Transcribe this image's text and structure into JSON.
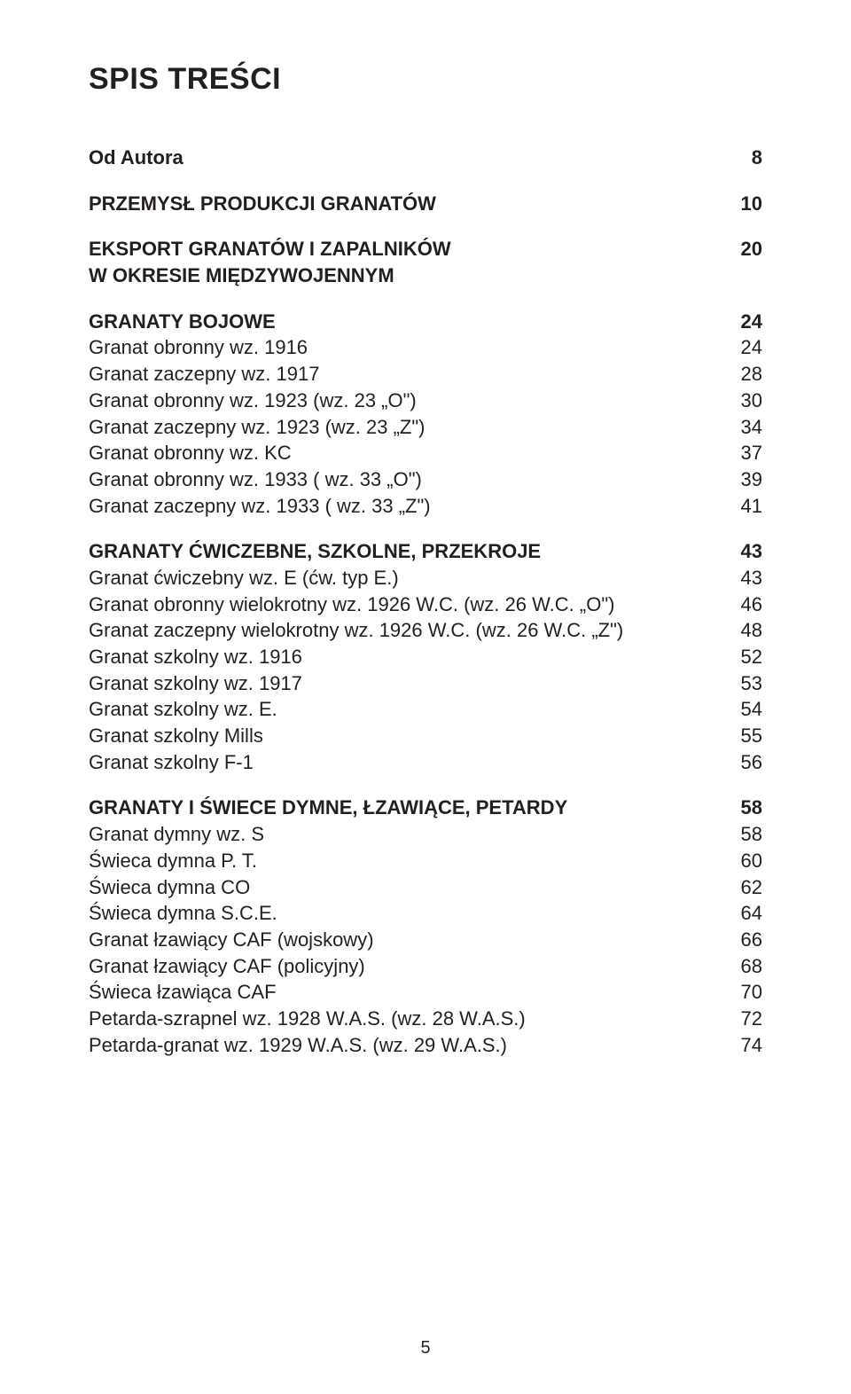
{
  "title": "SPIS TREŚCI",
  "page_number": "5",
  "sections": [
    {
      "head": {
        "label": "Od Autora",
        "page": "8"
      },
      "items": []
    },
    {
      "head": {
        "label": "PRZEMYSŁ PRODUKCJI GRANATÓW",
        "page": "10"
      },
      "items": []
    },
    {
      "head": {
        "label": "EKSPORT GRANATÓW I ZAPALNIKÓW\nW OKRESIE MIĘDZYWOJENNYM",
        "page": "20"
      },
      "items": []
    },
    {
      "head": {
        "label": "GRANATY BOJOWE",
        "page": "24"
      },
      "items": [
        {
          "label": "Granat obronny wz. 1916",
          "page": "24"
        },
        {
          "label": "Granat zaczepny wz. 1917",
          "page": "28"
        },
        {
          "label": "Granat obronny wz. 1923 (wz. 23 „O\")",
          "page": "30"
        },
        {
          "label": "Granat zaczepny wz. 1923 (wz. 23 „Z\")",
          "page": "34"
        },
        {
          "label": "Granat obronny wz. KC",
          "page": "37"
        },
        {
          "label": "Granat obronny wz. 1933 ( wz. 33 „O\")",
          "page": "39"
        },
        {
          "label": "Granat zaczepny wz. 1933 ( wz. 33 „Z\")",
          "page": "41"
        }
      ]
    },
    {
      "head": {
        "label": "GRANATY ĆWICZEBNE, SZKOLNE, PRZEKROJE",
        "page": "43"
      },
      "items": [
        {
          "label": "Granat ćwiczebny wz. E (ćw. typ E.)",
          "page": "43"
        },
        {
          "label": "Granat obronny wielokrotny wz. 1926 W.C. (wz. 26 W.C. „O\")",
          "page": "46"
        },
        {
          "label": "Granat zaczepny wielokrotny wz. 1926 W.C. (wz. 26 W.C. „Z\")",
          "page": "48"
        },
        {
          "label": "Granat szkolny wz. 1916",
          "page": "52"
        },
        {
          "label": "Granat szkolny wz. 1917",
          "page": "53"
        },
        {
          "label": "Granat szkolny wz. E.",
          "page": "54"
        },
        {
          "label": "Granat szkolny Mills",
          "page": "55"
        },
        {
          "label": "Granat szkolny F-1",
          "page": "56"
        }
      ]
    },
    {
      "head": {
        "label": "GRANATY I ŚWIECE DYMNE, ŁZAWIĄCE, PETARDY",
        "page": "58"
      },
      "items": [
        {
          "label": "Granat dymny wz. S",
          "page": "58"
        },
        {
          "label": "Świeca dymna P. T.",
          "page": "60"
        },
        {
          "label": "Świeca dymna CO",
          "page": "62"
        },
        {
          "label": "Świeca dymna S.C.E.",
          "page": "64"
        },
        {
          "label": "Granat łzawiący CAF (wojskowy)",
          "page": "66"
        },
        {
          "label": "Granat łzawiący CAF (policyjny)",
          "page": "68"
        },
        {
          "label": "Świeca łzawiąca CAF",
          "page": "70"
        },
        {
          "label": "Petarda-szrapnel wz. 1928 W.A.S. (wz. 28 W.A.S.)",
          "page": "72"
        },
        {
          "label": "Petarda-granat wz. 1929 W.A.S. (wz. 29 W.A.S.)",
          "page": "74"
        }
      ]
    }
  ]
}
